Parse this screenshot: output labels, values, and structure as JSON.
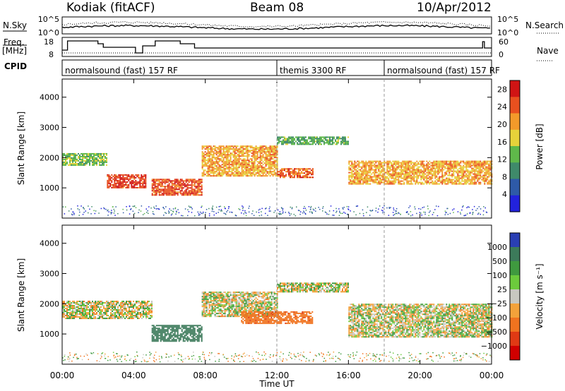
{
  "header": {
    "station": "Kodiak (fitACF)",
    "beam": "Beam 08",
    "date": "10/Apr/2012"
  },
  "left_labels": {
    "nsky": "N.Sky",
    "freq_line1": "Freq.",
    "freq_line2": "[MHz]",
    "cpid": "CPID"
  },
  "right_labels": {
    "nsearch": "N.Search",
    "nave": "Nave"
  },
  "noise_panel": {
    "left_ticks": [
      "10^5",
      "10^0"
    ],
    "right_ticks": [
      "10^5",
      "10^0"
    ]
  },
  "freq_panel": {
    "left_ticks": [
      "18",
      "8"
    ],
    "right_ticks": [
      "60",
      "0"
    ]
  },
  "cpid_panel": {
    "segments": [
      {
        "label": "normalsound (fast) 157 RF",
        "start_hour": 0,
        "end_hour": 12
      },
      {
        "label": "themis 3300 RF",
        "start_hour": 12,
        "end_hour": 18
      },
      {
        "label": "normalsound (fast) 157 RF",
        "start_hour": 18,
        "end_hour": 24
      }
    ]
  },
  "chart_data": [
    {
      "type": "heatmap",
      "title": "",
      "xlabel": "Time UT",
      "ylabel": "Slant Range [km]",
      "xlim": [
        0,
        24
      ],
      "ylim": [
        0,
        4600
      ],
      "xticks": [
        "00:00",
        "04:00",
        "08:00",
        "12:00",
        "16:00",
        "20:00",
        "00:00"
      ],
      "yticks": [
        1000,
        2000,
        3000,
        4000
      ],
      "colorbar": {
        "label": "Power [dB]",
        "ticks": [
          4,
          8,
          12,
          16,
          20,
          24,
          28
        ],
        "range": [
          0,
          30
        ],
        "colors": [
          "#2222dd",
          "#2e5aa8",
          "#3f8a6a",
          "#5fb84a",
          "#e6d23a",
          "#f39a2a",
          "#e8501f",
          "#d01414"
        ]
      },
      "echo_bands": [
        {
          "start_hour": 0.0,
          "end_hour": 2.5,
          "range_km": [
            1750,
            2150
          ],
          "power_db": 14
        },
        {
          "start_hour": 2.5,
          "end_hour": 4.7,
          "range_km": [
            1000,
            1450
          ],
          "power_db": 26
        },
        {
          "start_hour": 5.0,
          "end_hour": 7.8,
          "range_km": [
            750,
            1300
          ],
          "power_db": 25
        },
        {
          "start_hour": 7.8,
          "end_hour": 12.0,
          "range_km": [
            1400,
            2400
          ],
          "power_db": 20
        },
        {
          "start_hour": 12.0,
          "end_hour": 16.0,
          "range_km": [
            2450,
            2700
          ],
          "power_db": 12
        },
        {
          "start_hour": 12.0,
          "end_hour": 14.0,
          "range_km": [
            1350,
            1650
          ],
          "power_db": 24
        },
        {
          "start_hour": 16.0,
          "end_hour": 24.0,
          "range_km": [
            1150,
            1900
          ],
          "power_db": 20
        }
      ]
    },
    {
      "type": "heatmap",
      "title": "",
      "xlabel": "Time UT",
      "ylabel": "Slant Range [km]",
      "xlim": [
        0,
        24
      ],
      "ylim": [
        0,
        4600
      ],
      "xticks": [
        "00:00",
        "04:00",
        "08:00",
        "12:00",
        "16:00",
        "20:00",
        "00:00"
      ],
      "yticks": [
        1000,
        2000,
        3000,
        4000
      ],
      "colorbar": {
        "label": "Velocity [m s^-1]",
        "ticks": [
          1000,
          500,
          100,
          25,
          -25,
          -100,
          -500,
          -1000
        ],
        "colors": [
          "#2a3fb4",
          "#3c7a5a",
          "#3f9a3f",
          "#6ccb3c",
          "#c8c8c0",
          "#f3a23a",
          "#f0731f",
          "#e03a14",
          "#d00000"
        ]
      },
      "echo_bands": [
        {
          "start_hour": 0.0,
          "end_hour": 5.0,
          "range_km": [
            1500,
            2100
          ],
          "velocity": 0
        },
        {
          "start_hour": 5.0,
          "end_hour": 7.8,
          "range_km": [
            750,
            1300
          ],
          "velocity": 400
        },
        {
          "start_hour": 7.8,
          "end_hour": 12.0,
          "range_km": [
            1600,
            2400
          ],
          "velocity": 0
        },
        {
          "start_hour": 10.0,
          "end_hour": 14.0,
          "range_km": [
            1350,
            1750
          ],
          "velocity": -400
        },
        {
          "start_hour": 12.0,
          "end_hour": 16.0,
          "range_km": [
            2400,
            2700
          ],
          "velocity": 0
        },
        {
          "start_hour": 16.0,
          "end_hour": 24.0,
          "range_km": [
            900,
            2000
          ],
          "velocity": 0
        }
      ]
    }
  ],
  "vel_tick_labels": [
    "1000",
    "500",
    "100",
    "25",
    "−25",
    "−100",
    "−500",
    "−1000"
  ],
  "power_cbar_label": "Power [dB]",
  "velocity_cbar_label": "Velocity [m s⁻¹]"
}
